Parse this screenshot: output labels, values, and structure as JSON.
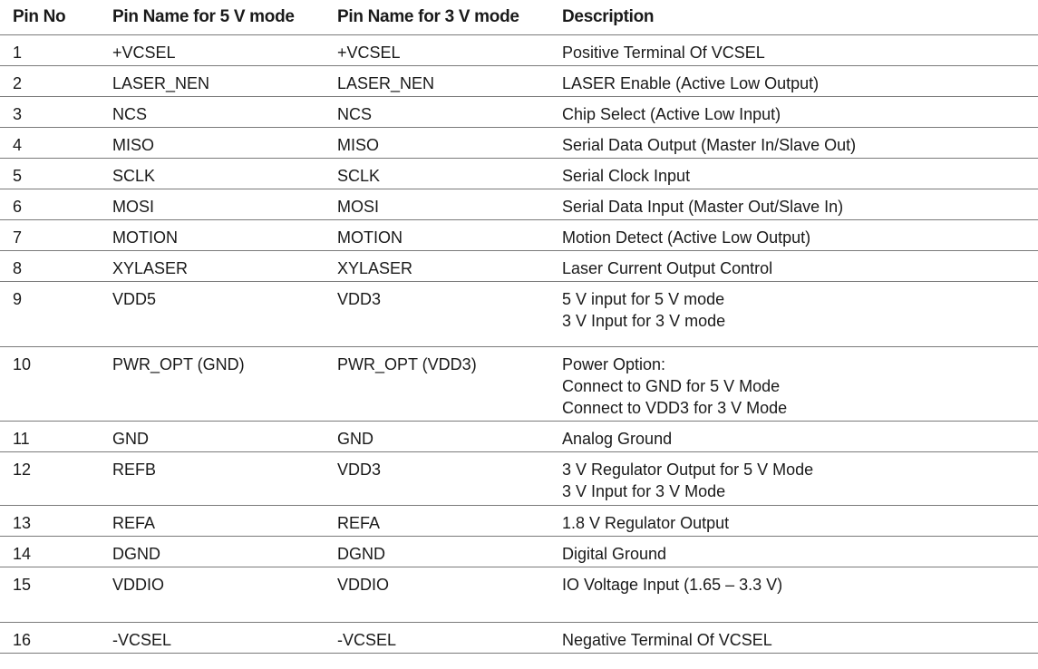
{
  "table": {
    "headers": [
      "Pin No",
      "Pin Name for 5 V mode",
      "Pin Name for 3 V mode",
      "Description"
    ],
    "rows": [
      {
        "pin": "1",
        "name5": "+VCSEL",
        "name3": "+VCSEL",
        "desc": [
          "Positive Terminal Of VCSEL"
        ]
      },
      {
        "pin": "2",
        "name5": "LASER_NEN",
        "name3": "LASER_NEN",
        "desc": [
          "LASER Enable (Active Low Output)"
        ]
      },
      {
        "pin": "3",
        "name5": "NCS",
        "name3": "NCS",
        "desc": [
          "Chip Select (Active Low Input)"
        ]
      },
      {
        "pin": "4",
        "name5": "MISO",
        "name3": "MISO",
        "desc": [
          "Serial Data Output (Master In/Slave Out)"
        ]
      },
      {
        "pin": "5",
        "name5": "SCLK",
        "name3": "SCLK",
        "desc": [
          "Serial Clock Input"
        ]
      },
      {
        "pin": "6",
        "name5": "MOSI",
        "name3": "MOSI",
        "desc": [
          "Serial Data Input (Master Out/Slave In)"
        ]
      },
      {
        "pin": "7",
        "name5": "MOTION",
        "name3": "MOTION",
        "desc": [
          "Motion Detect (Active Low Output)"
        ]
      },
      {
        "pin": "8",
        "name5": "XYLASER",
        "name3": "XYLASER",
        "desc": [
          "Laser Current Output Control"
        ]
      },
      {
        "pin": "9",
        "name5": "VDD5",
        "name3": "VDD3",
        "desc": [
          "5 V input for 5 V mode",
          "3 V Input for 3 V mode"
        ]
      },
      {
        "pin": "10",
        "name5": "PWR_OPT (GND)",
        "name3": "PWR_OPT (VDD3)",
        "desc": [
          "Power Option:",
          "Connect to GND for 5 V Mode",
          "Connect to VDD3 for 3 V Mode"
        ]
      },
      {
        "pin": "11",
        "name5": "GND",
        "name3": "GND",
        "desc": [
          "Analog Ground"
        ]
      },
      {
        "pin": "12",
        "name5": "REFB",
        "name3": "VDD3",
        "desc": [
          "3 V Regulator Output for 5 V Mode",
          "3 V Input for 3 V Mode"
        ]
      },
      {
        "pin": "13",
        "name5": "REFA",
        "name3": "REFA",
        "desc": [
          "1.8 V Regulator Output"
        ]
      },
      {
        "pin": "14",
        "name5": "DGND",
        "name3": "DGND",
        "desc": [
          "Digital Ground"
        ]
      },
      {
        "pin": "15",
        "name5": "VDDIO",
        "name3": "VDDIO",
        "desc": [
          "IO Voltage Input (1.65 – 3.3 V)"
        ]
      },
      {
        "pin": "16",
        "name5": "-VCSEL",
        "name3": "-VCSEL",
        "desc": [
          "Negative Terminal Of VCSEL"
        ]
      }
    ]
  }
}
